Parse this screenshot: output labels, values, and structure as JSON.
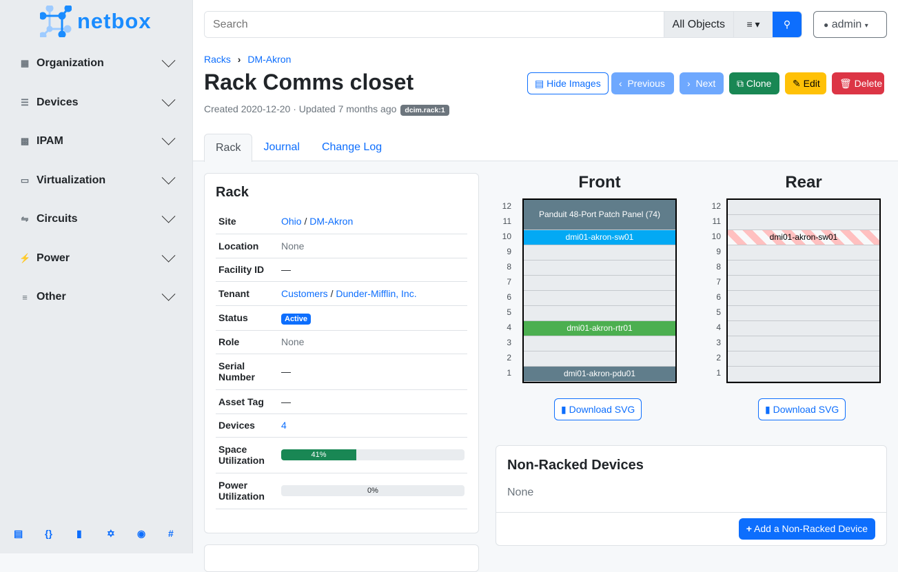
{
  "brand": "netbox",
  "sidebar": {
    "items": [
      {
        "label": "Organization",
        "icon": "building-icon"
      },
      {
        "label": "Devices",
        "icon": "server-icon"
      },
      {
        "label": "IPAM",
        "icon": "ip-icon"
      },
      {
        "label": "Virtualization",
        "icon": "monitor-icon"
      },
      {
        "label": "Circuits",
        "icon": "circuit-icon"
      },
      {
        "label": "Power",
        "icon": "bolt-icon"
      },
      {
        "label": "Other",
        "icon": "lines-icon"
      }
    ],
    "footer_icons": [
      "docs-icon",
      "api-icon",
      "book-icon",
      "graphql-icon",
      "github-icon",
      "slack-icon"
    ]
  },
  "search": {
    "placeholder": "Search",
    "scope": "All Objects"
  },
  "user": {
    "name": "admin"
  },
  "breadcrumb": [
    "Racks",
    "DM-Akron"
  ],
  "page": {
    "title": "Rack Comms closet",
    "created": "Created 2020-12-20",
    "updated": "Updated 7 months ago",
    "badge": "dcim.rack:1"
  },
  "actions": {
    "hide_images": "Hide Images",
    "previous": "Previous",
    "next": "Next",
    "clone": "Clone",
    "edit": "Edit",
    "delete": "Delete"
  },
  "tabs": [
    "Rack",
    "Journal",
    "Change Log"
  ],
  "rack_card": {
    "title": "Rack",
    "rows": {
      "site": {
        "k": "Site",
        "v1": "Ohio",
        "v2": "DM-Akron"
      },
      "location": {
        "k": "Location",
        "v": "None"
      },
      "facility": {
        "k": "Facility ID",
        "v": "—"
      },
      "tenant": {
        "k": "Tenant",
        "v1": "Customers",
        "v2": "Dunder-Mifflin, Inc."
      },
      "status": {
        "k": "Status",
        "v": "Active"
      },
      "role": {
        "k": "Role",
        "v": "None"
      },
      "serial": {
        "k": "Serial Number",
        "v": "—"
      },
      "asset": {
        "k": "Asset Tag",
        "v": "—"
      },
      "devices": {
        "k": "Devices",
        "v": "4"
      },
      "space": {
        "k": "Space Utilization",
        "v": "41%",
        "pct": 41
      },
      "power": {
        "k": "Power Utilization",
        "v": "0%",
        "pct": 0
      }
    }
  },
  "elevation": {
    "front": {
      "title": "Front",
      "devices": [
        {
          "name": "Panduit 48-Port Patch Panel (74)",
          "top": 12,
          "height": 2,
          "color": "#607d8b",
          "text": "#ffffff"
        },
        {
          "name": "dmi01-akron-sw01",
          "top": 10,
          "height": 1,
          "color": "#03a9f4",
          "text": "#ffffff"
        },
        {
          "name": "dmi01-akron-rtr01",
          "top": 4,
          "height": 1,
          "color": "#4caf50",
          "text": "#ffffff"
        },
        {
          "name": "dmi01-akron-pdu01",
          "top": 1,
          "height": 1,
          "color": "#607d8b",
          "text": "#ffffff"
        }
      ]
    },
    "rear": {
      "title": "Rear",
      "devices": [
        {
          "name": "dmi01-akron-sw01",
          "top": 10,
          "height": 1,
          "color": "striped",
          "text": "#000000"
        }
      ]
    },
    "units": 12,
    "download": "Download SVG"
  },
  "non_racked": {
    "title": "Non-Racked Devices",
    "value": "None",
    "add": "Add a Non-Racked Device"
  }
}
